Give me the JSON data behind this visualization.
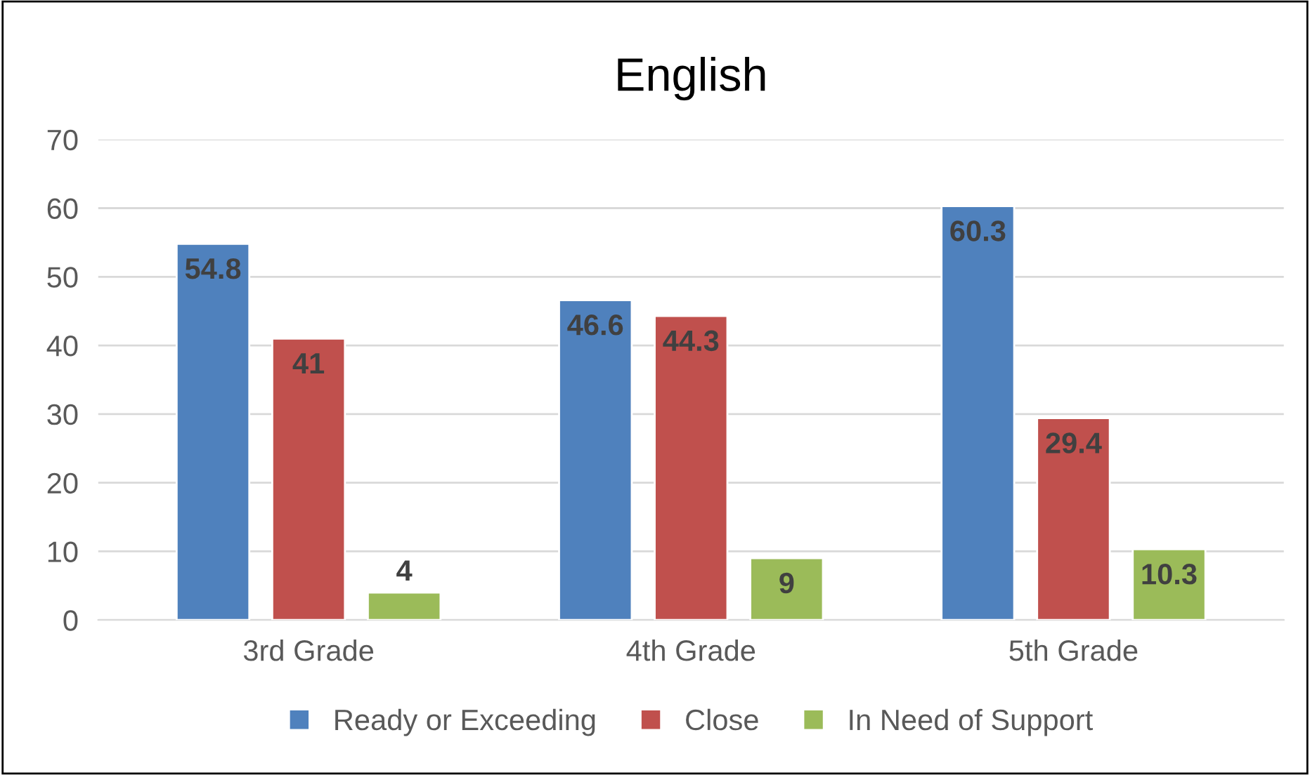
{
  "chart_data": {
    "type": "bar",
    "title": "English",
    "categories": [
      "3rd Grade",
      "4th Grade",
      "5th Grade"
    ],
    "series": [
      {
        "name": "Ready or Exceeding",
        "color": "#4f81bd",
        "values": [
          54.8,
          46.6,
          60.3
        ]
      },
      {
        "name": "Close",
        "color": "#c0504d",
        "values": [
          41,
          44.3,
          29.4
        ]
      },
      {
        "name": "In Need of Support",
        "color": "#9bbb59",
        "values": [
          4,
          9,
          10.3
        ]
      }
    ],
    "ylim": [
      0,
      70
    ],
    "yticks": [
      0,
      10,
      20,
      30,
      40,
      50,
      60,
      70
    ],
    "grid": "y",
    "legend": "bottom",
    "data_labels": true
  }
}
